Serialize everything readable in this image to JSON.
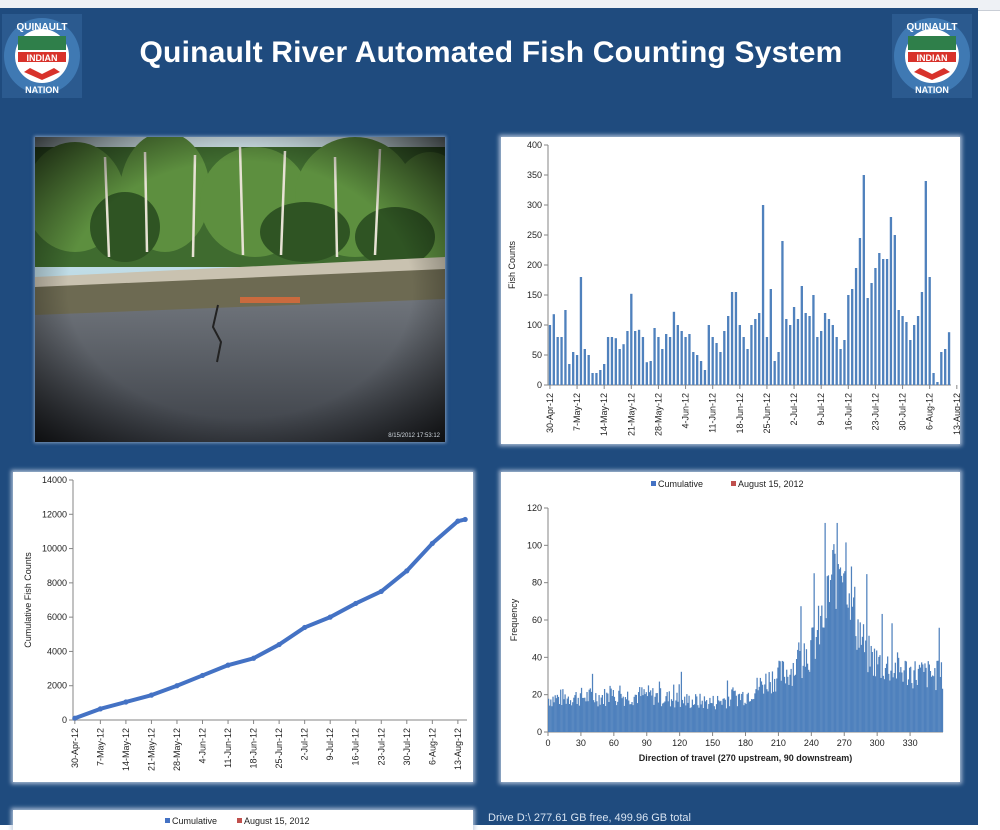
{
  "page": {
    "title": "Quinault River Automated Fish Counting System",
    "drive_status": "Drive D:\\ 277.61 GB free, 499.96 GB total",
    "photo_timestamp": "8/15/2012 17:53:12"
  },
  "logo": {
    "top_text": "QUINAULT",
    "middle_text": "INDIAN",
    "bottom_text": "NATION"
  },
  "colors": {
    "background": "#1f4b7e",
    "bar_blue": "#4f81bd",
    "line_blue": "#4472c4",
    "legend_red": "#c0504d"
  },
  "chart_data": [
    {
      "id": "daily",
      "type": "bar",
      "title": "",
      "ylabel": "Fish Counts",
      "xlabel": "",
      "ylim": [
        0,
        400
      ],
      "yticks": [
        0,
        50,
        100,
        150,
        200,
        250,
        300,
        350,
        400
      ],
      "x_tick_labels": [
        "30-Apr-12",
        "7-May-12",
        "14-May-12",
        "21-May-12",
        "28-May-12",
        "4-Jun-12",
        "11-Jun-12",
        "18-Jun-12",
        "25-Jun-12",
        "2-Jul-12",
        "9-Jul-12",
        "16-Jul-12",
        "23-Jul-12",
        "30-Jul-12",
        "6-Aug-12",
        "13-Aug-12"
      ],
      "start_date": "30-Apr-12",
      "values": [
        100,
        118,
        80,
        80,
        125,
        35,
        55,
        50,
        180,
        60,
        50,
        20,
        20,
        25,
        35,
        80,
        80,
        78,
        60,
        68,
        90,
        152,
        90,
        92,
        80,
        38,
        40,
        95,
        80,
        60,
        85,
        80,
        122,
        100,
        90,
        80,
        85,
        55,
        50,
        40,
        25,
        100,
        80,
        70,
        55,
        90,
        115,
        155,
        155,
        100,
        80,
        60,
        100,
        110,
        120,
        300,
        80,
        160,
        40,
        55,
        240,
        110,
        100,
        130,
        110,
        165,
        120,
        115,
        150,
        80,
        90,
        120,
        110,
        100,
        80,
        60,
        75,
        150,
        160,
        195,
        245,
        350,
        145,
        170,
        195,
        220,
        210,
        210,
        280,
        250,
        125,
        115,
        105,
        75,
        100,
        115,
        155,
        340,
        180,
        20,
        5,
        55,
        60,
        88
      ]
    },
    {
      "id": "cumulative",
      "type": "line",
      "title": "",
      "ylabel": "Cumulative Fish Counts",
      "xlabel": "",
      "ylim": [
        0,
        14000
      ],
      "yticks": [
        0,
        2000,
        4000,
        6000,
        8000,
        10000,
        12000,
        14000
      ],
      "x_tick_labels": [
        "30-Apr-12",
        "7-May-12",
        "14-May-12",
        "21-May-12",
        "28-May-12",
        "4-Jun-12",
        "11-Jun-12",
        "18-Jun-12",
        "25-Jun-12",
        "2-Jul-12",
        "9-Jul-12",
        "16-Jul-12",
        "23-Jul-12",
        "30-Jul-12",
        "6-Aug-12",
        "13-Aug-12"
      ],
      "start_date": "30-Apr-12",
      "x": [
        0,
        7,
        14,
        21,
        28,
        35,
        42,
        49,
        56,
        63,
        70,
        77,
        84,
        91,
        98,
        105,
        107
      ],
      "values": [
        100,
        650,
        1050,
        1450,
        2000,
        2600,
        3200,
        3600,
        4400,
        5400,
        6000,
        6800,
        7500,
        8700,
        10300,
        11600,
        11700
      ]
    },
    {
      "id": "direction",
      "type": "bar",
      "title": "",
      "xlabel": "Direction of travel (270 upstream, 90 downstream)",
      "ylabel": "Frequency",
      "ylim": [
        0,
        120
      ],
      "yticks": [
        0,
        20,
        40,
        60,
        80,
        100,
        120
      ],
      "xlim": [
        0,
        360
      ],
      "xticks": [
        0,
        30,
        60,
        90,
        120,
        150,
        180,
        210,
        240,
        270,
        300,
        330
      ],
      "legend": {
        "placement": "top-center",
        "entries": [
          {
            "name": "Cumulative",
            "color": "#4472c4"
          },
          {
            "name": "August 15, 2012",
            "color": "#c0504d"
          }
        ]
      },
      "profile_x": [
        0,
        30,
        60,
        90,
        120,
        150,
        180,
        200,
        220,
        240,
        250,
        258,
        264,
        268,
        272,
        280,
        290,
        300,
        330,
        359
      ],
      "profile_values": [
        18,
        19,
        19,
        20,
        17,
        16,
        20,
        28,
        33,
        45,
        60,
        82,
        92,
        100,
        90,
        60,
        42,
        37,
        32,
        30
      ]
    },
    {
      "id": "bottom-chart",
      "type": "bar",
      "title": "",
      "legend": {
        "placement": "top-center",
        "entries": [
          {
            "name": "Cumulative",
            "color": "#4472c4"
          },
          {
            "name": "August 15, 2012",
            "color": "#c0504d"
          }
        ]
      }
    }
  ]
}
